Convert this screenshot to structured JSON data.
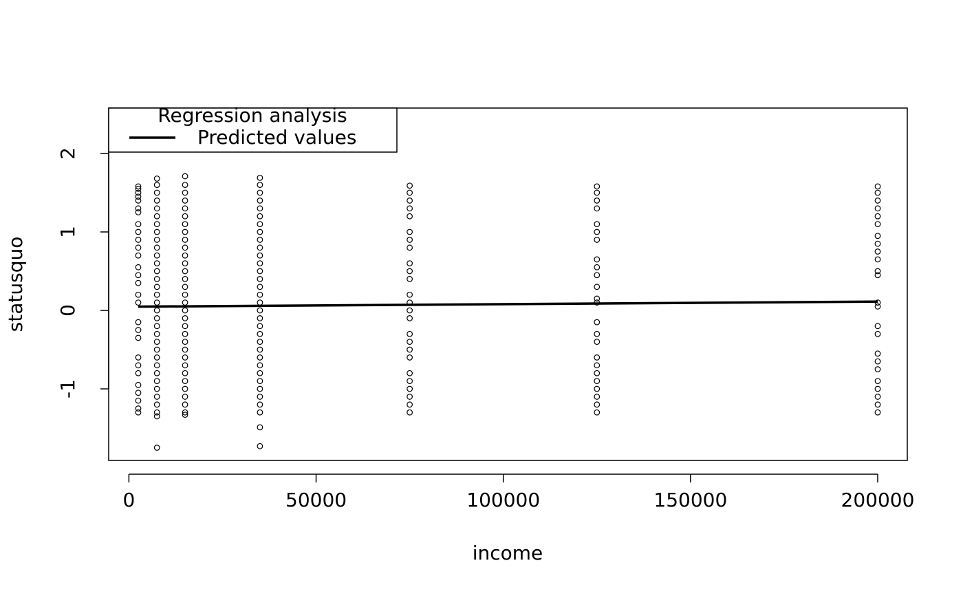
{
  "chart_data": {
    "type": "scatter",
    "xlabel": "income",
    "ylabel": "statusquo",
    "xlim": [
      -5400,
      207900
    ],
    "ylim": [
      -1.912,
      2.579
    ],
    "xticks": [
      0,
      50000,
      100000,
      150000,
      200000
    ],
    "yticks": [
      -1,
      0,
      1,
      2
    ],
    "legend": {
      "title": "Regression analysis",
      "position": "top-left"
    },
    "series": [
      {
        "type": "scatter",
        "color": "#000000",
        "x": [
          2500,
          2500,
          2500,
          2500,
          2500,
          2500,
          2500,
          2500,
          2500,
          2500,
          2500,
          2500,
          2500,
          2500,
          2500,
          2500,
          2500,
          2500,
          2500,
          2500,
          2500,
          2500,
          2500,
          2500,
          2500,
          2500,
          2500,
          2500
        ],
        "values": [
          1.58,
          1.55,
          1.5,
          1.45,
          1.4,
          1.3,
          1.25,
          1.1,
          1.0,
          0.9,
          0.8,
          0.7,
          0.55,
          0.45,
          0.35,
          0.2,
          0.1,
          -0.15,
          -0.25,
          -0.35,
          -0.6,
          -0.7,
          -0.8,
          -0.95,
          -1.05,
          -1.15,
          -1.25,
          -1.3
        ]
      },
      {
        "type": "scatter",
        "color": "#000000",
        "x": [
          7500,
          7500,
          7500,
          7500,
          7500,
          7500,
          7500,
          7500,
          7500,
          7500,
          7500,
          7500,
          7500,
          7500,
          7500,
          7500,
          7500,
          7500,
          7500,
          7500,
          7500,
          7500,
          7500,
          7500,
          7500,
          7500,
          7500,
          7500,
          7500,
          7500,
          7500,
          7500,
          7500
        ],
        "values": [
          1.68,
          1.6,
          1.5,
          1.4,
          1.3,
          1.2,
          1.1,
          1.0,
          0.9,
          0.8,
          0.7,
          0.6,
          0.5,
          0.4,
          0.3,
          0.2,
          0.1,
          0,
          -0.1,
          -0.2,
          -0.3,
          -0.4,
          -0.5,
          -0.6,
          -0.7,
          -0.8,
          -0.9,
          -1.0,
          -1.1,
          -1.2,
          -1.3,
          -1.35,
          -1.75
        ]
      },
      {
        "type": "scatter",
        "color": "#000000",
        "x": [
          15000,
          15000,
          15000,
          15000,
          15000,
          15000,
          15000,
          15000,
          15000,
          15000,
          15000,
          15000,
          15000,
          15000,
          15000,
          15000,
          15000,
          15000,
          15000,
          15000,
          15000,
          15000,
          15000,
          15000,
          15000,
          15000,
          15000,
          15000,
          15000,
          15000,
          15000,
          15000
        ],
        "values": [
          1.71,
          1.6,
          1.5,
          1.4,
          1.3,
          1.2,
          1.1,
          1.0,
          0.9,
          0.8,
          0.7,
          0.6,
          0.5,
          0.4,
          0.3,
          0.2,
          0.1,
          0,
          -0.1,
          -0.2,
          -0.3,
          -0.4,
          -0.5,
          -0.6,
          -0.7,
          -0.8,
          -0.9,
          -1.0,
          -1.1,
          -1.2,
          -1.3,
          -1.33
        ]
      },
      {
        "type": "scatter",
        "color": "#000000",
        "x": [
          35000,
          35000,
          35000,
          35000,
          35000,
          35000,
          35000,
          35000,
          35000,
          35000,
          35000,
          35000,
          35000,
          35000,
          35000,
          35000,
          35000,
          35000,
          35000,
          35000,
          35000,
          35000,
          35000,
          35000,
          35000,
          35000,
          35000,
          35000,
          35000,
          35000,
          35000,
          35000,
          35000
        ],
        "values": [
          1.69,
          1.6,
          1.5,
          1.4,
          1.3,
          1.2,
          1.1,
          1.0,
          0.9,
          0.8,
          0.7,
          0.6,
          0.5,
          0.4,
          0.3,
          0.2,
          0.1,
          0,
          -0.1,
          -0.2,
          -0.3,
          -0.4,
          -0.5,
          -0.6,
          -0.7,
          -0.8,
          -0.9,
          -1.0,
          -1.1,
          -1.2,
          -1.3,
          -1.49,
          -1.73
        ]
      },
      {
        "type": "scatter",
        "color": "#000000",
        "x": [
          75000,
          75000,
          75000,
          75000,
          75000,
          75000,
          75000,
          75000,
          75000,
          75000,
          75000,
          75000,
          75000,
          75000,
          75000,
          75000,
          75000,
          75000,
          75000,
          75000,
          75000,
          75000,
          75000,
          75000,
          75000
        ],
        "values": [
          1.59,
          1.5,
          1.4,
          1.3,
          1.2,
          1.0,
          0.9,
          0.8,
          0.6,
          0.5,
          0.4,
          0.2,
          0.1,
          0,
          -0.1,
          -0.3,
          -0.4,
          -0.5,
          -0.6,
          -0.8,
          -0.9,
          -1.0,
          -1.1,
          -1.2,
          -1.3
        ]
      },
      {
        "type": "scatter",
        "color": "#000000",
        "x": [
          125000,
          125000,
          125000,
          125000,
          125000,
          125000,
          125000,
          125000,
          125000,
          125000,
          125000,
          125000,
          125000,
          125000,
          125000,
          125000,
          125000,
          125000,
          125000,
          125000,
          125000,
          125000,
          125000,
          125000
        ],
        "values": [
          1.58,
          1.5,
          1.4,
          1.3,
          1.1,
          1.0,
          0.9,
          0.65,
          0.55,
          0.45,
          0.3,
          0.15,
          0.1,
          -0.15,
          -0.3,
          -0.4,
          -0.6,
          -0.7,
          -0.8,
          -0.9,
          -1.0,
          -1.1,
          -1.2,
          -1.3
        ]
      },
      {
        "type": "scatter",
        "color": "#000000",
        "x": [
          200000,
          200000,
          200000,
          200000,
          200000,
          200000,
          200000,
          200000,
          200000,
          200000,
          200000,
          200000,
          200000,
          200000,
          200000,
          200000,
          200000,
          200000,
          200000,
          200000,
          200000,
          200000,
          200000,
          200000
        ],
        "values": [
          1.58,
          1.5,
          1.4,
          1.3,
          1.2,
          1.1,
          0.95,
          0.85,
          0.75,
          0.65,
          0.5,
          0.45,
          0.1,
          0.05,
          -0.2,
          -0.3,
          -0.55,
          -0.65,
          -0.75,
          -0.9,
          -1.0,
          -1.1,
          -1.2,
          -1.3
        ]
      },
      {
        "type": "line",
        "name": "Predicted values",
        "color": "#000000",
        "x": [
          2500,
          200000
        ],
        "values": [
          0.048,
          0.112
        ]
      }
    ]
  }
}
